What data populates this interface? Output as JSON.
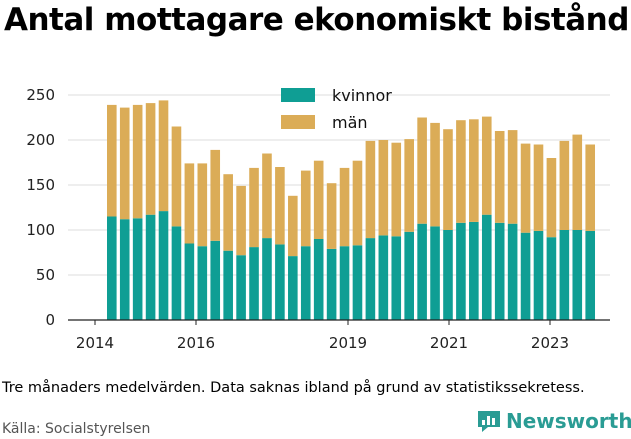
{
  "title": "Antal mottagare ekonomiskt bistånd",
  "note": "Tre månaders medelvärden. Data saknas ibland på grund av statistikssekretess.",
  "source": "Källa: Socialstyrelsen",
  "brand": {
    "name": "Newsworthy",
    "icon": "newsworthy-logo-icon",
    "color": "#2a9c94"
  },
  "colors": {
    "kvinnor": "#0f9e94",
    "man": "#dbac57",
    "grid": "#dddddd"
  },
  "chart_data": {
    "type": "bar",
    "stacked": true,
    "x_ticks": [
      "2014",
      "2016",
      "2019",
      "2021",
      "2023"
    ],
    "y_ticks": [
      "0",
      "50",
      "100",
      "150",
      "200",
      "250"
    ],
    "ylim": [
      0,
      265
    ],
    "grid": true,
    "legend_position": "top-center",
    "x": [
      "2014-Q2",
      "2014-Q3",
      "2014-Q4",
      "2015-Q1",
      "2015-Q2",
      "2015-Q3",
      "2015-Q4",
      "2016-Q1",
      "2016-Q2",
      "2016-Q3",
      "2016-Q4",
      "2017-Q1",
      "2017-Q2",
      "2017-Q3",
      "2017-Q4",
      "2018-Q1",
      "2018-Q2",
      "2018-Q3",
      "2018-Q4",
      "2019-Q1",
      "2019-Q2",
      "2019-Q3",
      "2019-Q4",
      "2020-Q1",
      "2020-Q2",
      "2020-Q3",
      "2020-Q4",
      "2021-Q1",
      "2021-Q2",
      "2021-Q3",
      "2021-Q4",
      "2022-Q1",
      "2022-Q2",
      "2022-Q3",
      "2022-Q4",
      "2023-Q1",
      "2023-Q2",
      "2023-Q3"
    ],
    "series": [
      {
        "name": "kvinnor",
        "values": [
          115,
          112,
          113,
          117,
          121,
          104,
          85,
          82,
          88,
          77,
          72,
          81,
          91,
          84,
          71,
          82,
          90,
          79,
          82,
          83,
          91,
          94,
          93,
          98,
          107,
          104,
          100,
          108,
          109,
          117,
          108,
          107,
          97,
          99,
          92,
          100,
          100,
          99
        ]
      },
      {
        "name": "män",
        "values": [
          124,
          124,
          126,
          124,
          123,
          111,
          89,
          92,
          101,
          85,
          77,
          88,
          94,
          86,
          67,
          84,
          87,
          73,
          87,
          94,
          108,
          106,
          104,
          103,
          118,
          115,
          112,
          114,
          114,
          109,
          102,
          104,
          99,
          96,
          88,
          99,
          106,
          96
        ]
      }
    ]
  }
}
